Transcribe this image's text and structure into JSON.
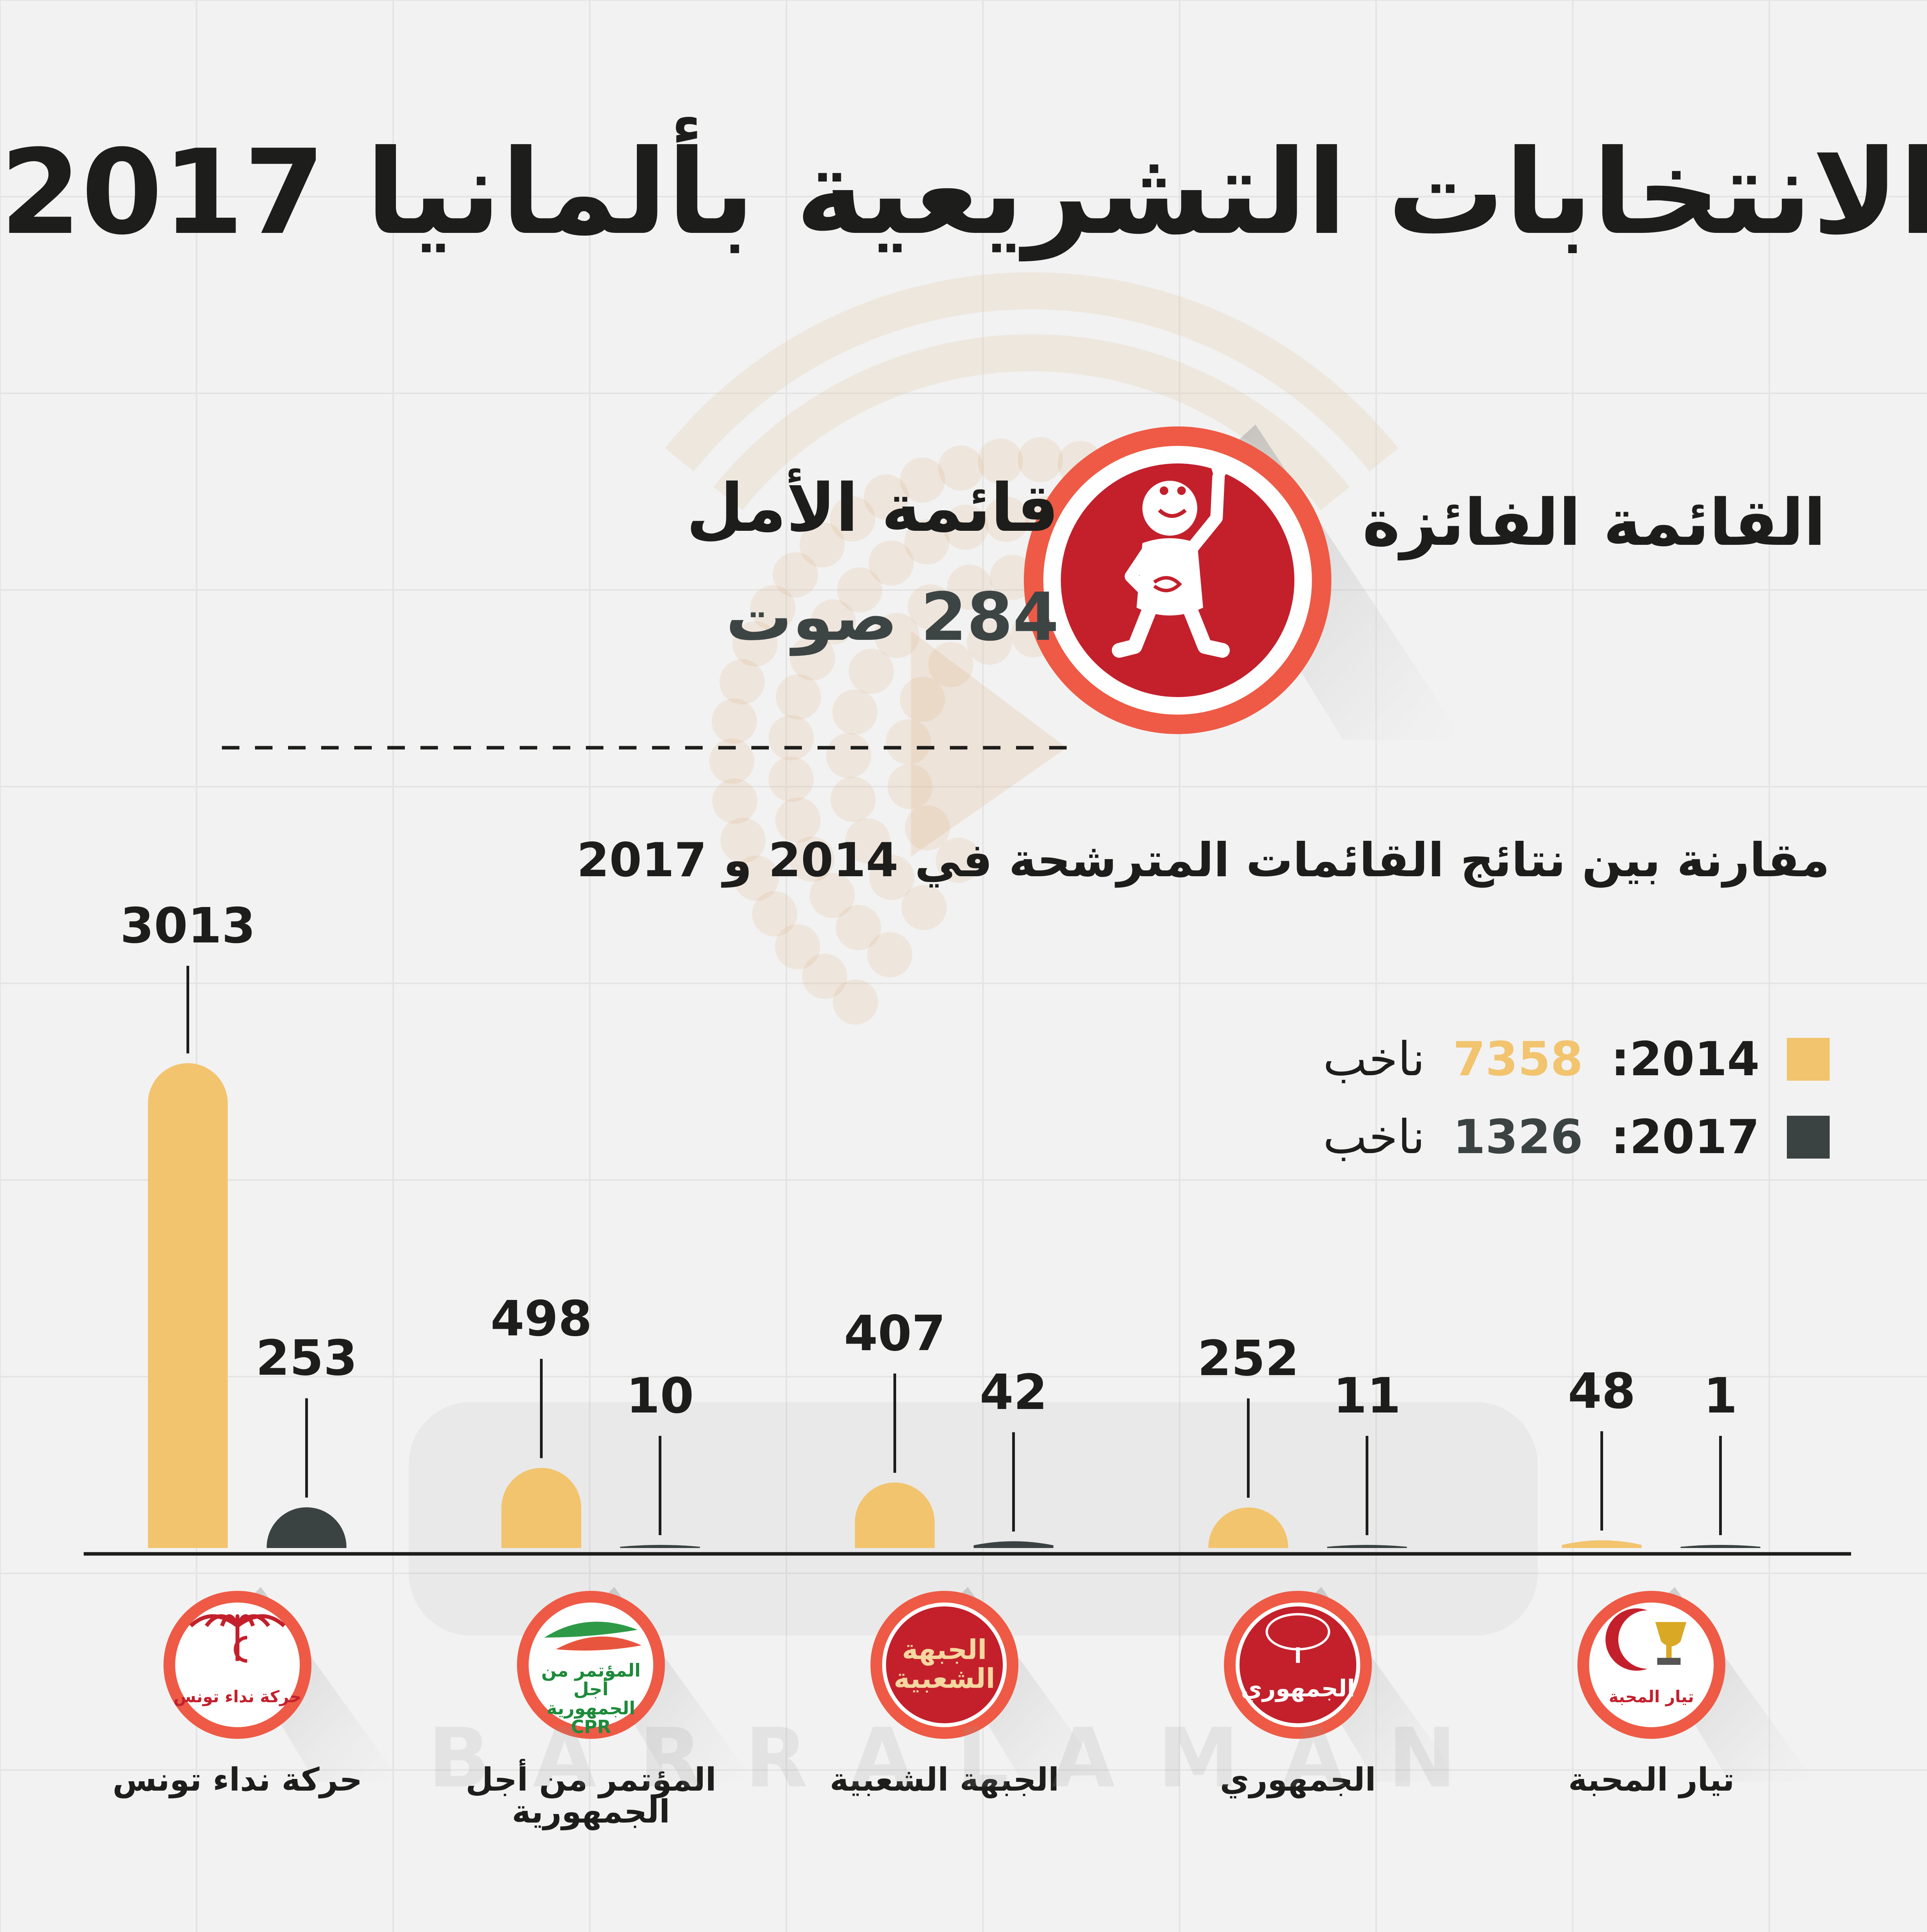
{
  "title": "الانتخابات التشريعية بألمانيا 2017",
  "winner": {
    "label": "القائمة الفائزة",
    "name": "قائمة الأمل",
    "votes_text": "284 صوت"
  },
  "colors": {
    "y2014": "#f2c46e",
    "y2017": "#3a4242",
    "accent_red": "#c3202c",
    "ring_red": "#ee5a45",
    "background": "#f2f2f2"
  },
  "chart_data": {
    "type": "bar",
    "title": "مقارنة بين نتائج القائمات المترشحة في 2014 و 2017",
    "categories": [
      "حركة نداء تونس",
      "المؤتمر من أجل الجمهورية",
      "الجبهة الشعبية",
      "الجمهوري",
      "تيار المحبة"
    ],
    "series": [
      {
        "name": "2014",
        "values": [
          3013,
          498,
          407,
          252,
          48
        ]
      },
      {
        "name": "2017",
        "values": [
          253,
          10,
          42,
          11,
          1
        ]
      }
    ],
    "legend": [
      {
        "year": "2014:",
        "count": "7358",
        "unit": "ناخب"
      },
      {
        "year": "2017:",
        "count": "1326",
        "unit": "ناخب"
      }
    ],
    "legend_placement": "top-right",
    "ylim": [
      0,
      3013
    ],
    "grid": false
  },
  "badges": [
    {
      "icon": "palm-tree-icon",
      "text": "حركة نداء تونس"
    },
    {
      "icon": "green-ribbon-icon",
      "text": "المؤتمر من أجل الجمهورية CPR"
    },
    {
      "icon": "",
      "text": "الجبهة الشعبية"
    },
    {
      "icon": "tree-icon",
      "text": "الجمهوري"
    },
    {
      "icon": "crescent-trophy-icon",
      "text": "تيار المحبة"
    }
  ],
  "watermark": "BARRALAMAN"
}
